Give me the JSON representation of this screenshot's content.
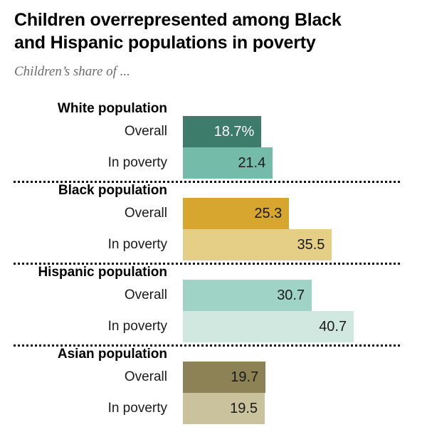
{
  "header": {
    "title": "Children overrepresented among Black\nand Hispanic populations in poverty",
    "subtitle": "Children’s share of ..."
  },
  "chart_data": {
    "type": "bar",
    "orientation": "horizontal",
    "title": "Children overrepresented among Black and Hispanic populations in poverty",
    "subtitle": "Children’s share of ...",
    "categories": [
      "White population",
      "Black population",
      "Hispanic population",
      "Asian population"
    ],
    "series": [
      {
        "name": "Overall",
        "values": [
          18.7,
          25.3,
          30.7,
          19.7
        ]
      },
      {
        "name": "In poverty",
        "values": [
          21.4,
          35.5,
          40.7,
          19.5
        ]
      }
    ],
    "value_labels": [
      [
        "18.7%",
        "21.4"
      ],
      [
        "25.3",
        "35.5"
      ],
      [
        "30.7",
        "40.7"
      ],
      [
        "19.7",
        "19.5"
      ]
    ],
    "unit": "percent",
    "xlim": [
      0,
      45
    ],
    "grid": false,
    "legend_position": "none",
    "bar_label_position": "inside-right",
    "group_separator": "dotted-line"
  },
  "groups": [
    {
      "label": "White population",
      "bars": [
        {
          "label": "Overall",
          "value": 18.7,
          "display": "18.7%",
          "color": "#3D7B6A",
          "text_color": "#ffffff"
        },
        {
          "label": "In poverty",
          "value": 21.4,
          "display": "21.4",
          "color": "#74BCA9",
          "text_color": "#1a1a1a"
        }
      ]
    },
    {
      "label": "Black population",
      "bars": [
        {
          "label": "Overall",
          "value": 25.3,
          "display": "25.3",
          "color": "#D6A62E",
          "text_color": "#1a1a1a"
        },
        {
          "label": "In poverty",
          "value": 35.5,
          "display": "35.5",
          "color": "#E5CE85",
          "text_color": "#1a1a1a"
        }
      ]
    },
    {
      "label": "Hispanic population",
      "bars": [
        {
          "label": "Overall",
          "value": 30.7,
          "display": "30.7",
          "color": "#9FD3C5",
          "text_color": "#1a1a1a"
        },
        {
          "label": "In poverty",
          "value": 40.7,
          "display": "40.7",
          "color": "#D1E8E1",
          "text_color": "#1a1a1a"
        }
      ]
    },
    {
      "label": "Asian population",
      "bars": [
        {
          "label": "Overall",
          "value": 19.7,
          "display": "19.7",
          "color": "#8C8256",
          "text_color": "#1a1a1a"
        },
        {
          "label": "In poverty",
          "value": 19.5,
          "display": "19.5",
          "color": "#CAC19D",
          "text_color": "#1a1a1a"
        }
      ]
    }
  ]
}
